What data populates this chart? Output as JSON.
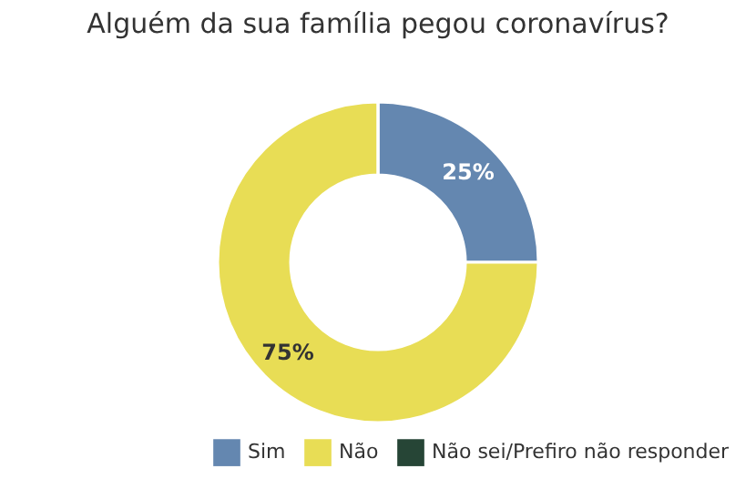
{
  "chart_data": {
    "type": "donut",
    "title": "Alguém da sua família pegou coronavírus?",
    "categories": [
      "Sim",
      "Não",
      "Não sei/Prefiro não responder"
    ],
    "values": [
      25,
      75,
      0
    ],
    "colors": [
      "#6487b0",
      "#e8dd55",
      "#264536"
    ],
    "value_labels": [
      "25%",
      "75%",
      null
    ],
    "legend": "bottom"
  }
}
